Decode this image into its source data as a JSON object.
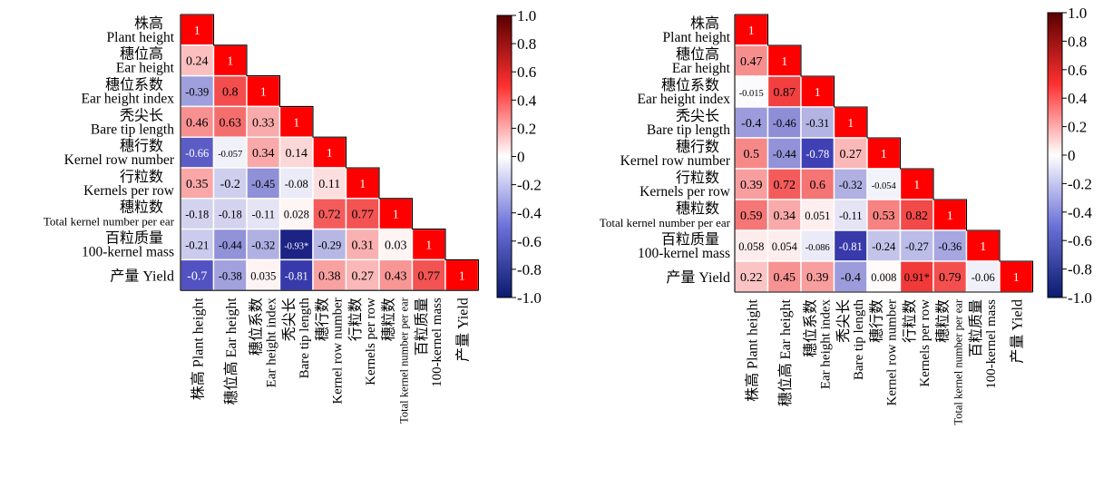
{
  "chart_data": [
    {
      "type": "heatmap",
      "title": "",
      "variables": [
        {
          "zh": "株高",
          "en": "Plant height"
        },
        {
          "zh": "穗位高",
          "en": "Ear height"
        },
        {
          "zh": "穗位系数",
          "en": "Ear height index"
        },
        {
          "zh": "秃尖长",
          "en": "Bare tip length"
        },
        {
          "zh": "穗行数",
          "en": "Kernel row number"
        },
        {
          "zh": "行粒数",
          "en": "Kernels per row"
        },
        {
          "zh": "穗粒数",
          "en": "Total kernel number per ear"
        },
        {
          "zh": "百粒质量",
          "en": "100-kernel mass"
        },
        {
          "zh": "产量",
          "en": "Yield"
        }
      ],
      "row_labels": [
        [
          "株高",
          "Plant height"
        ],
        [
          "穗位高",
          "Ear height"
        ],
        [
          "穗位系数",
          "Ear height index"
        ],
        [
          "秃尖长",
          "Bare tip length"
        ],
        [
          "穗行数",
          "Kernel row number"
        ],
        [
          "行粒数",
          "Kernels per row"
        ],
        [
          "穗粒数",
          "Total kernel number per ear"
        ],
        [
          "百粒质量",
          "100-kernel mass"
        ],
        [
          "产量 Yield"
        ]
      ],
      "col_labels": [
        [
          "株高 Plant height"
        ],
        [
          "穗位高 Ear height"
        ],
        [
          "穗位系数",
          "Ear height index"
        ],
        [
          "秃尖长",
          "Bare tip length"
        ],
        [
          "穗行数",
          "Kernel row number"
        ],
        [
          "行粒数",
          "Kernels per row"
        ],
        [
          "穗粒数",
          "Total kernel number per ear"
        ],
        [
          "百粒质量",
          "100-kernel mass"
        ],
        [
          "产量 Yield"
        ]
      ],
      "values": [
        [
          1
        ],
        [
          0.24,
          1
        ],
        [
          -0.39,
          0.8,
          1
        ],
        [
          0.46,
          0.63,
          0.33,
          1
        ],
        [
          -0.66,
          -0.057,
          0.34,
          0.14,
          1
        ],
        [
          0.35,
          -0.2,
          -0.45,
          -0.08,
          0.11,
          1
        ],
        [
          -0.18,
          -0.18,
          -0.11,
          0.028,
          0.72,
          0.77,
          1
        ],
        [
          -0.21,
          -0.44,
          -0.32,
          -0.93,
          -0.29,
          0.31,
          0.03,
          1
        ],
        [
          -0.7,
          -0.38,
          0.035,
          -0.81,
          0.38,
          0.27,
          0.43,
          0.77,
          1
        ]
      ],
      "labels": [
        [
          "1"
        ],
        [
          "0.24",
          "1"
        ],
        [
          "-0.39",
          "0.8",
          "1"
        ],
        [
          "0.46",
          "0.63",
          "0.33",
          "1"
        ],
        [
          "-0.66",
          "-0.057",
          "0.34",
          "0.14",
          "1"
        ],
        [
          "0.35",
          "-0.2",
          "-0.45",
          "-0.08",
          "0.11",
          "1"
        ],
        [
          "-0.18",
          "-0.18",
          "-0.11",
          "0.028",
          "0.72",
          "0.77",
          "1"
        ],
        [
          "-0.21",
          "-0.44",
          "-0.32",
          "-0.93*",
          "-0.29",
          "0.31",
          "0.03",
          "1"
        ],
        [
          "-0.7",
          "-0.38",
          "0.035",
          "-0.81",
          "0.38",
          "0.27",
          "0.43",
          "0.77",
          "1"
        ]
      ],
      "colorbar": {
        "ticks": [
          "1.0",
          "0.8",
          "0.6",
          "0.4",
          "0.2",
          "0",
          "-0.2",
          "-0.4",
          "-0.6",
          "-0.8",
          "-1.0"
        ],
        "range": [
          -1,
          1
        ],
        "colors": {
          "low": "#0a1a6e",
          "mid": "#ffffff",
          "high": "#ff0000",
          "high_dark": "#5a0000"
        }
      }
    },
    {
      "type": "heatmap",
      "title": "",
      "row_labels": [
        [
          "株高",
          "Plant height"
        ],
        [
          "穗位高",
          "Ear height"
        ],
        [
          "穗位系数",
          "Ear height index"
        ],
        [
          "秃尖长",
          "Bare tip length"
        ],
        [
          "穗行数",
          "Kernel row number"
        ],
        [
          "行粒数",
          "Kernels per row"
        ],
        [
          "穗粒数",
          "Total kernel number per ear"
        ],
        [
          "百粒质量",
          "100-kernel mass"
        ],
        [
          "产量 Yield"
        ]
      ],
      "col_labels": [
        [
          "株高 Plant height"
        ],
        [
          "穗位高 Ear height"
        ],
        [
          "穗位系数",
          "Ear height index"
        ],
        [
          "秃尖长",
          "Bare tip length"
        ],
        [
          "穗行数",
          "Kernel row number"
        ],
        [
          "行粒数",
          "Kernels per row"
        ],
        [
          "穗粒数",
          "Total kernel number per ear"
        ],
        [
          "百粒质量",
          "100-kernel mass"
        ],
        [
          "产量 Yield"
        ]
      ],
      "values": [
        [
          1
        ],
        [
          0.47,
          1
        ],
        [
          -0.015,
          0.87,
          1
        ],
        [
          -0.4,
          -0.46,
          -0.31,
          1
        ],
        [
          0.5,
          -0.44,
          -0.78,
          0.27,
          1
        ],
        [
          0.39,
          0.72,
          0.6,
          -0.32,
          -0.054,
          1
        ],
        [
          0.59,
          0.34,
          0.051,
          -0.11,
          0.53,
          0.82,
          1
        ],
        [
          0.058,
          0.054,
          -0.086,
          -0.81,
          -0.24,
          -0.27,
          -0.36,
          1
        ],
        [
          0.22,
          0.45,
          0.39,
          -0.4,
          0.008,
          0.91,
          0.79,
          -0.06,
          1
        ]
      ],
      "labels": [
        [
          "1"
        ],
        [
          "0.47",
          "1"
        ],
        [
          "-0.015",
          "0.87",
          "1"
        ],
        [
          "-0.4",
          "-0.46",
          "-0.31",
          "1"
        ],
        [
          "0.5",
          "-0.44",
          "-0.78",
          "0.27",
          "1"
        ],
        [
          "0.39",
          "0.72",
          "0.6",
          "-0.32",
          "-0.054",
          "1"
        ],
        [
          "0.59",
          "0.34",
          "0.051",
          "-0.11",
          "0.53",
          "0.82",
          "1"
        ],
        [
          "0.058",
          "0.054",
          "-0.086",
          "-0.81",
          "-0.24",
          "-0.27",
          "-0.36",
          "1"
        ],
        [
          "0.22",
          "0.45",
          "0.39",
          "-0.4",
          "0.008",
          "0.91*",
          "0.79",
          "-0.06",
          "1"
        ]
      ],
      "colorbar": {
        "ticks": [
          "1.0",
          "0.8",
          "0.6",
          "0.4",
          "0.2",
          "0",
          "-0.2",
          "-0.4",
          "-0.6",
          "-0.8",
          "-1.0"
        ],
        "range": [
          -1,
          1
        ],
        "colors": {
          "low": "#0a1a6e",
          "mid": "#ffffff",
          "high": "#ff0000",
          "high_dark": "#5a0000"
        }
      }
    }
  ]
}
